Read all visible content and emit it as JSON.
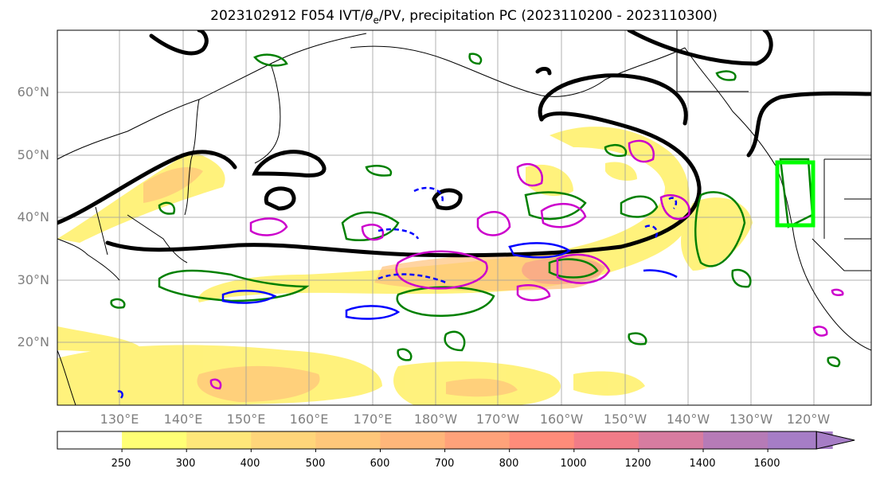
{
  "title": {
    "text": "2023102912 F054 IVT/",
    "theta": "θ",
    "sub": "e",
    "rest": "/PV, precipitation PC (2023110200 - 2023110300)"
  },
  "map": {
    "lat_labels": [
      "60°N",
      "50°N",
      "40°N",
      "30°N",
      "20°N"
    ],
    "lon_labels": [
      "130°E",
      "140°E",
      "150°E",
      "160°E",
      "170°E",
      "180°W",
      "170°W",
      "160°W",
      "150°W",
      "140°W",
      "130°W",
      "120°W"
    ],
    "colors": {
      "ivt_fill": "#fff066",
      "ivt_fill_strong": "#ffc27a",
      "ivt_fill_peak": "#f58f8f",
      "theta_e_contour": "#000000",
      "pv_positive": "#cc00cc",
      "pv_negative": "#0000ff",
      "precip_pc": "#008000",
      "highlight_box": "#00ff00",
      "grid": "#9e9e9e",
      "coast": "#000000"
    }
  },
  "colorbar": {
    "ticks": [
      "250",
      "300",
      "400",
      "500",
      "600",
      "700",
      "800",
      "1000",
      "1200",
      "1400",
      "1600"
    ],
    "colors": [
      "#ffffff",
      "#ffff75",
      "#ffe77a",
      "#ffd57a",
      "#ffc77a",
      "#ffb67a",
      "#ffa27a",
      "#ff8c7a",
      "#f07c88",
      "#d77ca0",
      "#b67bb7",
      "#a67dc6"
    ]
  }
}
